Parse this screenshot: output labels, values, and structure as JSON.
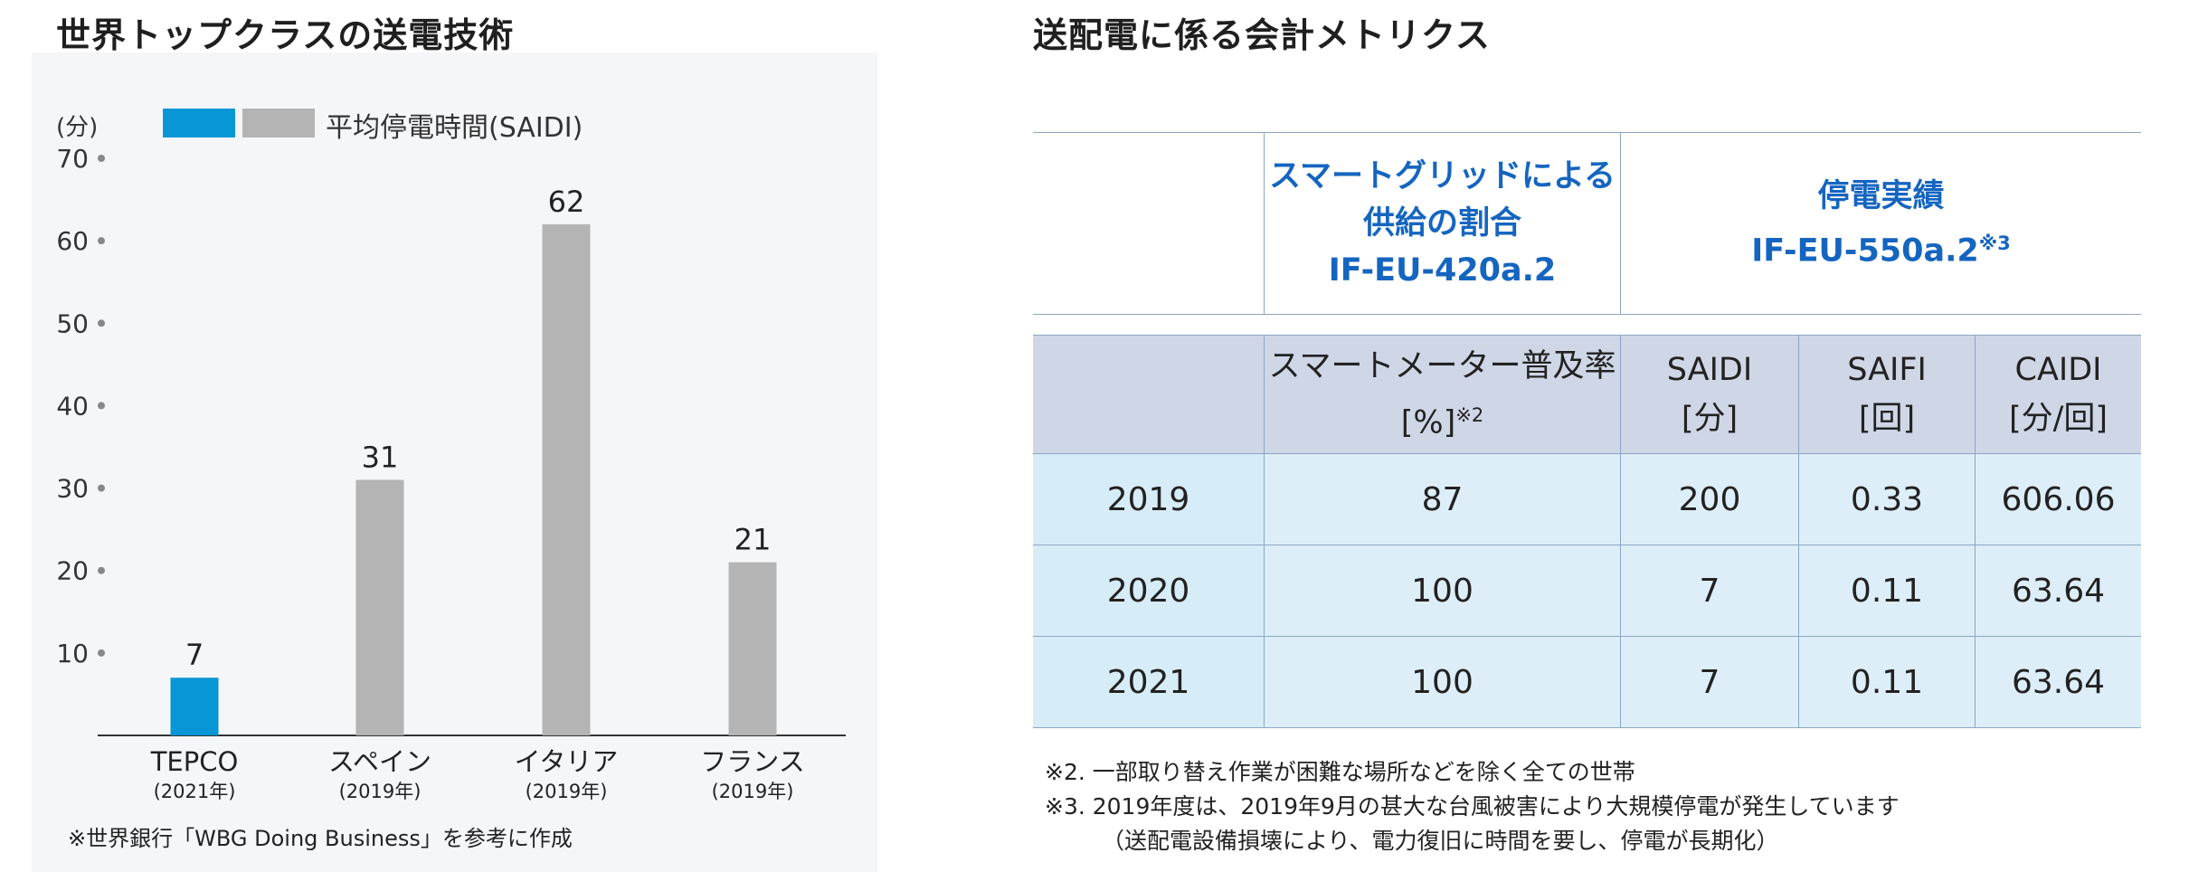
{
  "left": {
    "title": "世界トップクラスの送電技術",
    "y_unit": "(分)",
    "legend_label": "平均停電時間(SAIDI)",
    "footnote": "※世界銀行「WBG Doing Business」を参考に作成",
    "colors": {
      "highlight": "#0896d6",
      "bar": "#b4b4b4"
    }
  },
  "chart_data": {
    "type": "bar",
    "categories": [
      "TEPCO",
      "スペイン",
      "イタリア",
      "フランス"
    ],
    "category_sub": [
      "(2021年)",
      "(2019年)",
      "(2019年)",
      "(2019年)"
    ],
    "series": [
      {
        "name": "平均停電時間(SAIDI)",
        "values": [
          7,
          31,
          62,
          21
        ]
      }
    ],
    "ylabel": "(分)",
    "ylim": [
      0,
      70
    ],
    "yticks": [
      10,
      20,
      30,
      40,
      50,
      60,
      70
    ],
    "highlight_index": 0,
    "grid": false
  },
  "right": {
    "title": "送配電に係る会計メトリクス",
    "group1": {
      "line1": "スマートグリッドによる",
      "line2": "供給の割合",
      "line3": "IF-EU-420a.2"
    },
    "group2": {
      "line1": "停電実績",
      "line2": "IF-EU-550a.2",
      "sup": "※3"
    },
    "columns": [
      {
        "l1": "スマートメーター普及率",
        "l2": "[%]",
        "sup": "※2"
      },
      {
        "l1": "SAIDI",
        "l2": "[分]"
      },
      {
        "l1": "SAIFI",
        "l2": "[回]"
      },
      {
        "l1": "CAIDI",
        "l2": "[分/回]"
      }
    ],
    "rows": [
      {
        "year": "2019",
        "smart": "87",
        "saidi": "200",
        "saifi": "0.33",
        "caidi": "606.06"
      },
      {
        "year": "2020",
        "smart": "100",
        "saidi": "7",
        "saifi": "0.11",
        "caidi": "63.64"
      },
      {
        "year": "2021",
        "smart": "100",
        "saidi": "7",
        "saifi": "0.11",
        "caidi": "63.64"
      }
    ],
    "notes": [
      "※2.  一部取り替え作業が困難な場所などを除く全ての世帯",
      "※3.  2019年度は、2019年9月の甚大な台風被害により大規模停電が発生しています",
      "（送配電設備損壊により、電力復旧に時間を要し、停電が長期化）"
    ]
  }
}
